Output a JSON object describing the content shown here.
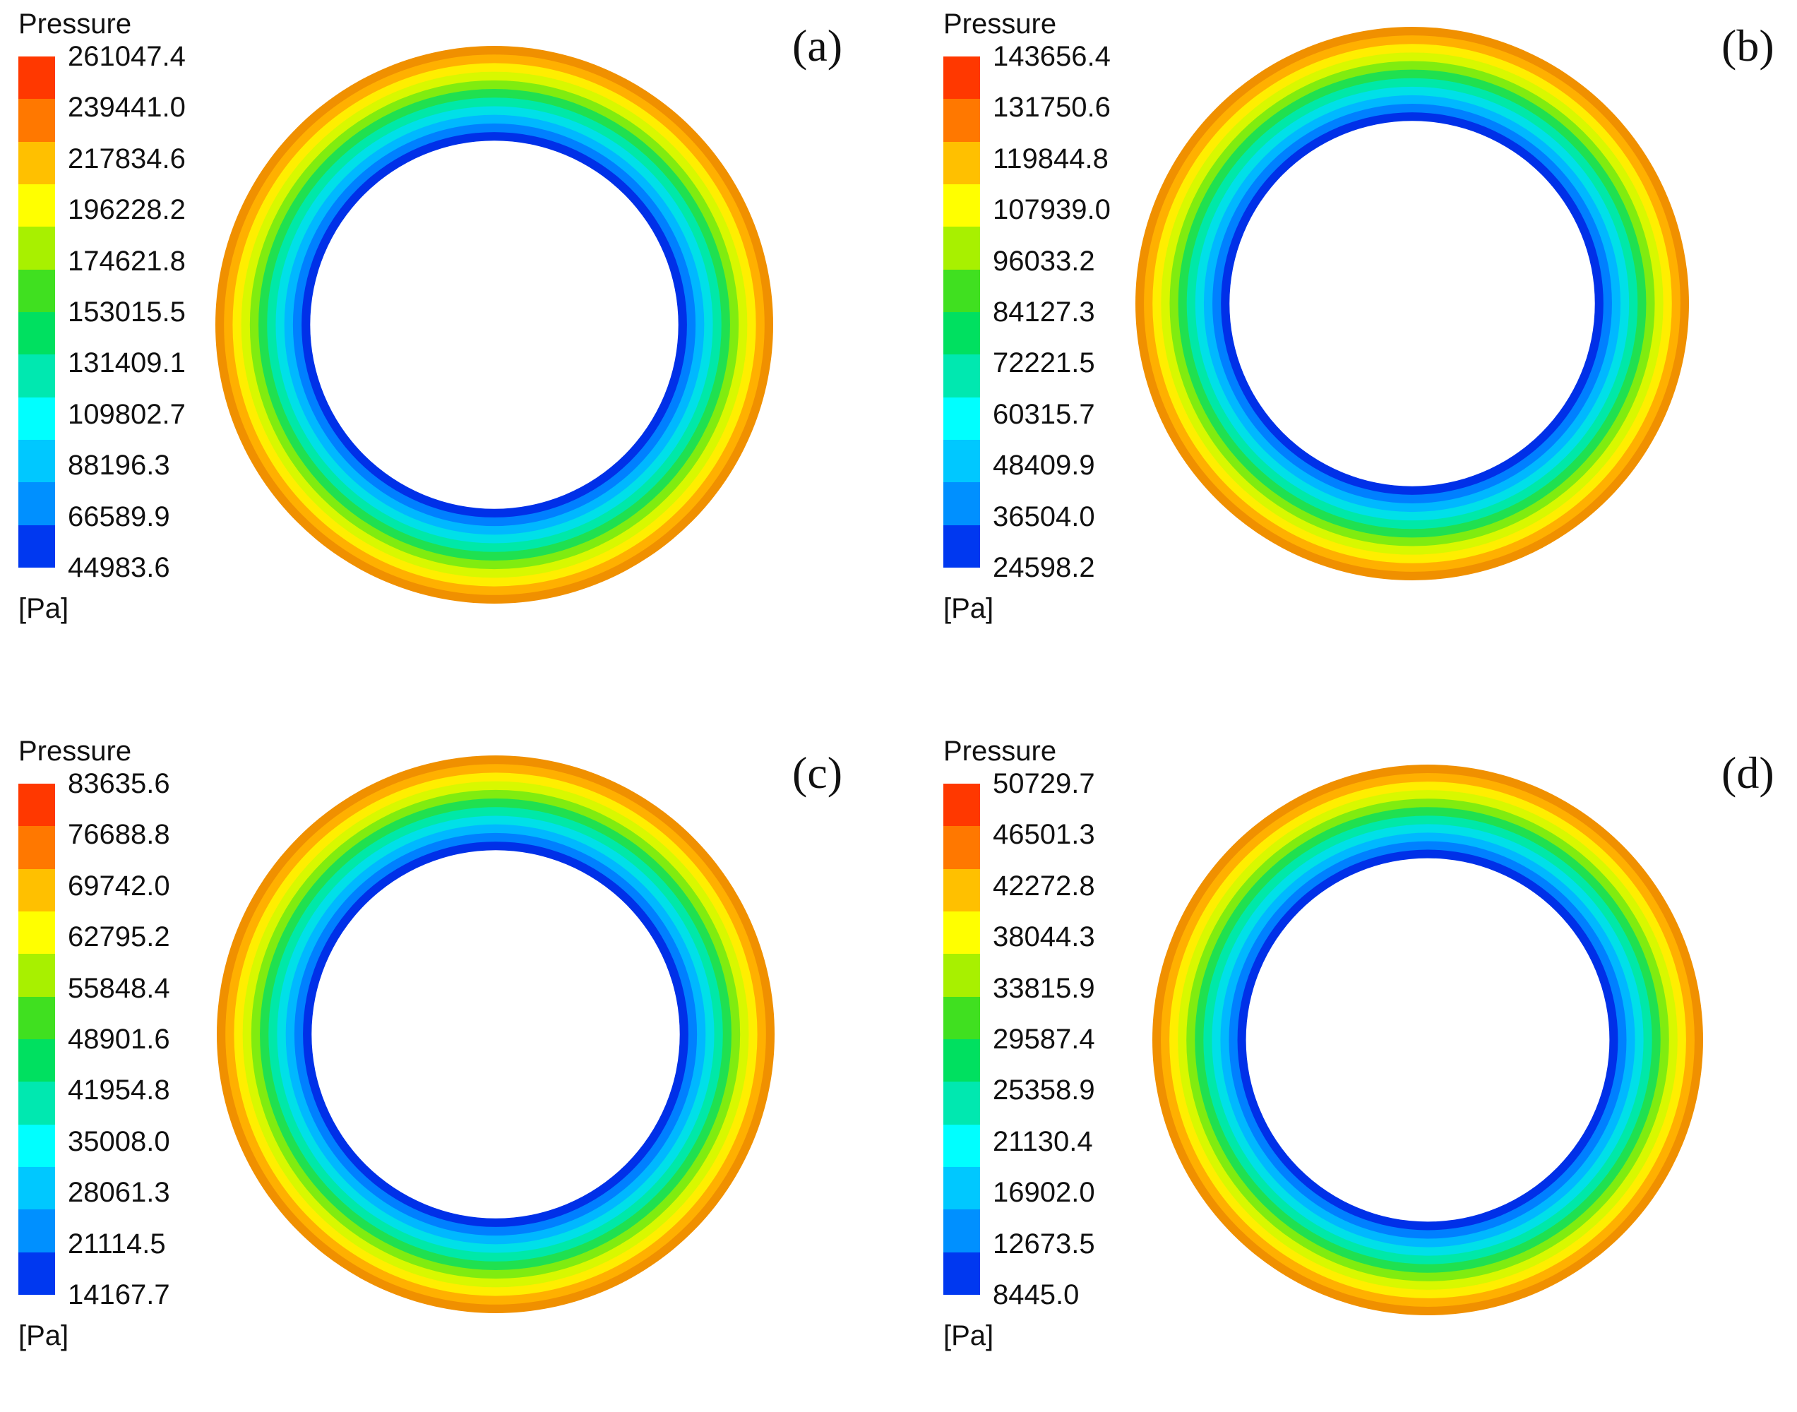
{
  "colors": {
    "bands": [
      "#0038f0",
      "#0090ff",
      "#00c8ff",
      "#00ffff",
      "#00e8b0",
      "#00e060",
      "#40e020",
      "#a8f000",
      "#ffff00",
      "#ffc000",
      "#ff7800",
      "#ff3800"
    ],
    "ring_bands": [
      "#0030e8",
      "#0080ff",
      "#00b8ff",
      "#00e0e8",
      "#00e8a8",
      "#20e050",
      "#80ec10",
      "#d8f800",
      "#ffee00",
      "#ffb000",
      "#f09000"
    ]
  },
  "panels": [
    {
      "label": "(a)",
      "legend_title": "Pressure",
      "unit": "[Pa]",
      "ticks": [
        "261047.4",
        "239441.0",
        "217834.6",
        "196228.2",
        "174621.8",
        "153015.5",
        "131409.1",
        "109802.7",
        "88196.3",
        "66589.9",
        "44983.6"
      ]
    },
    {
      "label": "(b)",
      "legend_title": "Pressure",
      "unit": "[Pa]",
      "ticks": [
        "143656.4",
        "131750.6",
        "119844.8",
        "107939.0",
        "96033.2",
        "84127.3",
        "72221.5",
        "60315.7",
        "48409.9",
        "36504.0",
        "24598.2"
      ]
    },
    {
      "label": "(c)",
      "legend_title": "Pressure",
      "unit": "[Pa]",
      "ticks": [
        "83635.6",
        "76688.8",
        "69742.0",
        "62795.2",
        "55848.4",
        "48901.6",
        "41954.8",
        "35008.0",
        "28061.3",
        "21114.5",
        "14167.7"
      ]
    },
    {
      "label": "(d)",
      "legend_title": "Pressure",
      "unit": "[Pa]",
      "ticks": [
        "50729.7",
        "46501.3",
        "42272.8",
        "38044.3",
        "33815.9",
        "29587.4",
        "25358.9",
        "21130.4",
        "16902.0",
        "12673.5",
        "8445.0"
      ]
    }
  ]
}
